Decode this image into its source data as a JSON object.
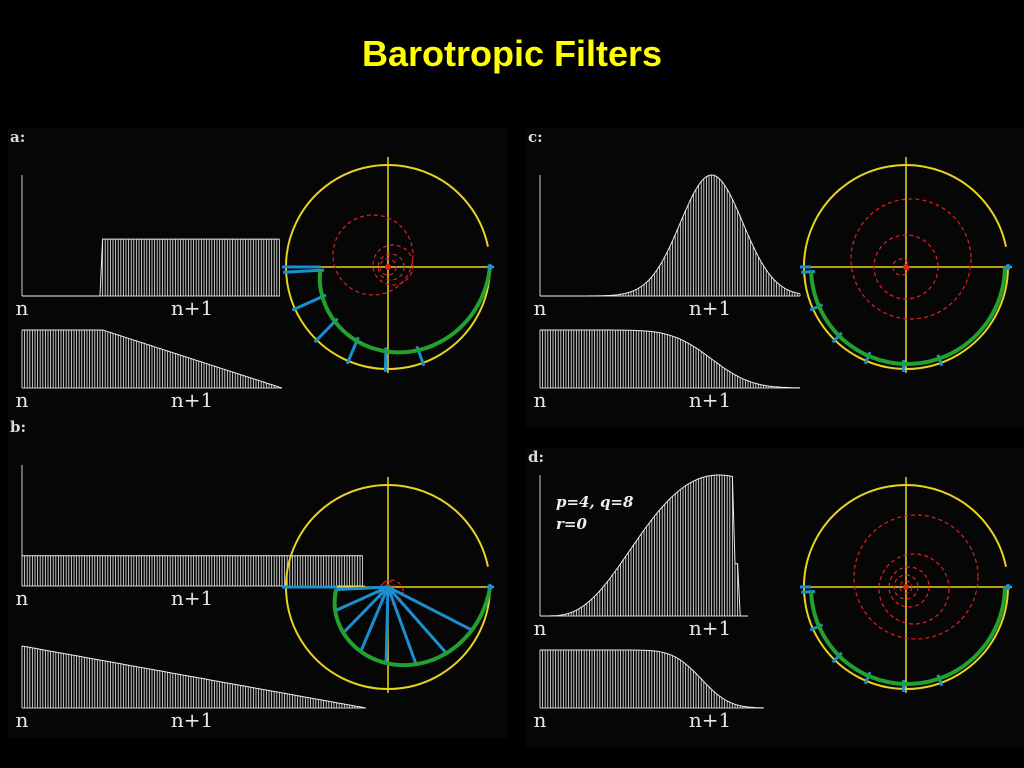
{
  "header": {
    "title": "Barotropic Filters"
  },
  "panels": [
    {
      "label": "a:",
      "plots": [
        {
          "x_labels": [
            "n",
            "n+1"
          ]
        },
        {
          "x_labels": [
            "n",
            "n+1"
          ]
        }
      ]
    },
    {
      "label": "b:",
      "plots": [
        {
          "x_labels": [
            "n",
            "n+1"
          ]
        },
        {
          "x_labels": [
            "n",
            "n+1"
          ]
        }
      ]
    },
    {
      "label": "c:",
      "plots": [
        {
          "x_labels": [
            "n",
            "n+1"
          ]
        },
        {
          "x_labels": [
            "n",
            "n+1"
          ]
        }
      ]
    },
    {
      "label": "d:",
      "annotation": [
        "p=4,   q=8",
        "r=0"
      ],
      "plots": [
        {
          "x_labels": [
            "n",
            "n+1"
          ]
        },
        {
          "x_labels": [
            "n",
            "n+1"
          ]
        }
      ]
    }
  ]
}
